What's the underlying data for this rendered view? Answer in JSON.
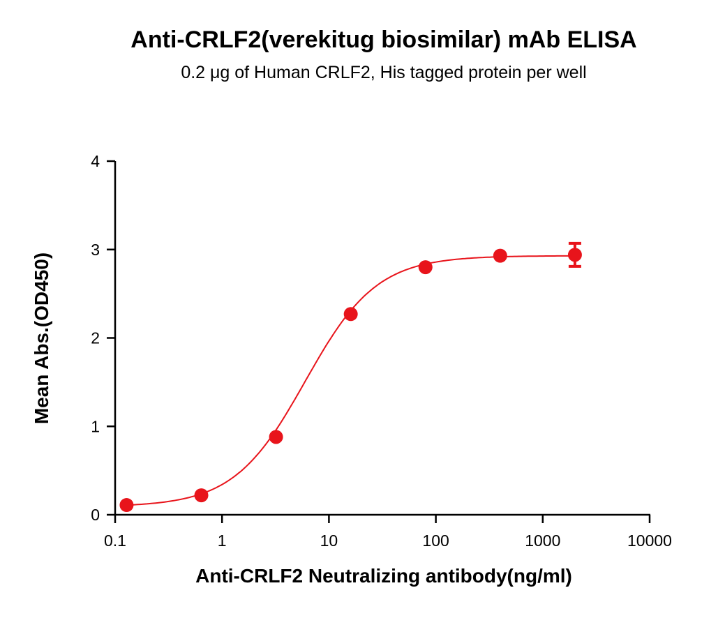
{
  "chart_data": {
    "type": "scatter",
    "title": "Anti-CRLF2(verekitug biosimilar) mAb ELISA",
    "subtitle": "0.2 μg of Human CRLF2, His tagged protein per well",
    "xlabel": "Anti-CRLF2 Neutralizing antibody(ng/ml)",
    "ylabel": "Mean Abs.(OD450)",
    "x_scale": "log",
    "xlim": [
      0.1,
      10000
    ],
    "ylim": [
      0,
      4
    ],
    "x_ticks": [
      "0.1",
      "1",
      "10",
      "100",
      "1000",
      "10000"
    ],
    "y_ticks": [
      "0",
      "1",
      "2",
      "3",
      "4"
    ],
    "grid": false,
    "color": "#e8141b",
    "series": [
      {
        "x": [
          0.128,
          0.64,
          3.2,
          16,
          80,
          400,
          2000
        ],
        "y": [
          0.11,
          0.22,
          0.88,
          2.27,
          2.8,
          2.93,
          2.94
        ],
        "error": [
          0,
          0,
          0,
          0,
          0,
          0,
          0.13
        ]
      }
    ],
    "fit": {
      "type": "4PL sigmoid",
      "bottom": 0.09,
      "top": 2.93,
      "ec50": 6,
      "hill": 1.3
    }
  }
}
